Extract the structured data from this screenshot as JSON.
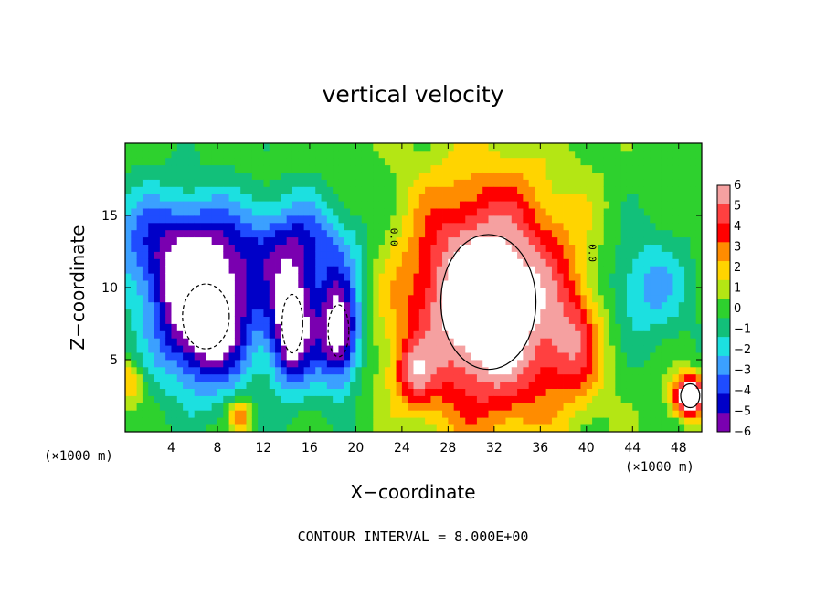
{
  "chart_data": {
    "type": "heatmap",
    "title": "vertical velocity",
    "xlabel": "X−coordinate",
    "ylabel": "Z−coordinate",
    "x_unit": "(×1000 m)",
    "x_unit_right": "(×1000 m)",
    "xlim": [
      0,
      50
    ],
    "ylim": [
      0,
      20
    ],
    "x_ticks": [
      4,
      8,
      12,
      16,
      20,
      24,
      28,
      32,
      36,
      40,
      44,
      48
    ],
    "x_tick_labels": [
      "4",
      "8",
      "12",
      "16",
      "20",
      "24",
      "28",
      "32",
      "36",
      "40",
      "44",
      "48"
    ],
    "y_ticks": [
      5,
      10,
      15
    ],
    "y_tick_labels": [
      "5",
      "10",
      "15"
    ],
    "contour_interval_text": "CONTOUR INTERVAL = 8.000E+00",
    "contour_labels": [
      {
        "text": "0.0",
        "x": 23.0,
        "y": 13.5
      },
      {
        "text": "0.0",
        "x": 40.2,
        "y": 12.4
      }
    ],
    "colorbar": {
      "levels": [
        6,
        5,
        4,
        3,
        2,
        1,
        0,
        -1,
        -2,
        -3,
        -4,
        -5,
        -6
      ],
      "level_labels": [
        "6",
        "5",
        "4",
        "3",
        "2",
        "1",
        "0",
        "−1",
        "−2",
        "−3",
        "−4",
        "−5",
        "−6"
      ],
      "colors": [
        "#f5a0a0",
        "#ff4040",
        "#ff0000",
        "#ff8c00",
        "#ffd400",
        "#b4e614",
        "#2ed12e",
        "#12c07a",
        "#1ce0e0",
        "#3ba0ff",
        "#1f4cff",
        "#0000c8",
        "#7a00b0"
      ]
    },
    "features": [
      {
        "kind": "updraft",
        "x": 31.5,
        "z": 9.0,
        "rx": 7.5,
        "rz": 8.5,
        "peak": 9
      },
      {
        "kind": "updraft",
        "x": 25.0,
        "z": 4.0,
        "rx": 1.8,
        "rz": 2.2,
        "peak": 3.5
      },
      {
        "kind": "updraft",
        "x": 39.0,
        "z": 6.0,
        "rx": 2.5,
        "rz": 4.0,
        "peak": 3
      },
      {
        "kind": "updraft",
        "x": 49.0,
        "z": 2.5,
        "rx": 1.5,
        "rz": 1.5,
        "peak": 9
      },
      {
        "kind": "updraft",
        "x": 10.0,
        "z": 1.2,
        "rx": 1.0,
        "rz": 1.2,
        "peak": 4
      },
      {
        "kind": "updraft",
        "x": 0.5,
        "z": 3.5,
        "rx": 1.0,
        "rz": 1.5,
        "peak": 3
      },
      {
        "kind": "downdraft",
        "x": 7.0,
        "z": 8.0,
        "rx": 4.5,
        "rz": 5.0,
        "peak": -9
      },
      {
        "kind": "downdraft",
        "x": 14.5,
        "z": 7.5,
        "rx": 2.0,
        "rz": 4.5,
        "peak": -8
      },
      {
        "kind": "downdraft",
        "x": 18.5,
        "z": 7.0,
        "rx": 2.0,
        "rz": 4.0,
        "peak": -8
      },
      {
        "kind": "downdraft",
        "x": 4.0,
        "z": 13.0,
        "rx": 6.0,
        "rz": 4.0,
        "peak": -4.5
      },
      {
        "kind": "downdraft",
        "x": 15.0,
        "z": 13.0,
        "rx": 6.0,
        "rz": 3.5,
        "peak": -4
      },
      {
        "kind": "downdraft",
        "x": 45.0,
        "z": 10.0,
        "rx": 4.0,
        "rz": 4.0,
        "peak": -3
      }
    ]
  }
}
